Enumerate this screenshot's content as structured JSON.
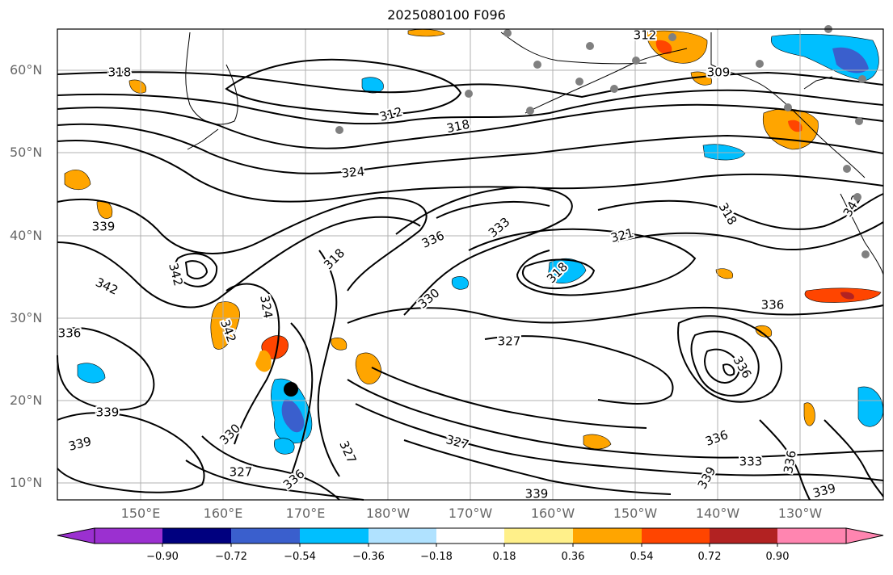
{
  "title": "2025080100 F096",
  "map": {
    "lat_labels": [
      "60°N",
      "50°N",
      "40°N",
      "30°N",
      "20°N",
      "10°N"
    ],
    "lon_labels": [
      "150°E",
      "160°E",
      "170°E",
      "180°W",
      "170°W",
      "160°W",
      "150°W",
      "140°W",
      "130°W"
    ],
    "contour_labels": [
      "318",
      "312",
      "318",
      "309",
      "312",
      "324",
      "321",
      "318",
      "333",
      "336",
      "336",
      "330",
      "327",
      "318",
      "339",
      "342",
      "342",
      "339",
      "330",
      "327",
      "336",
      "327",
      "327",
      "336",
      "333",
      "339",
      "339",
      "336",
      "339",
      "336",
      "336",
      "339",
      "342",
      "318",
      "342",
      "324"
    ]
  },
  "colorbar": {
    "labels": [
      "−0.90",
      "−0.72",
      "−0.54",
      "−0.36",
      "−0.18",
      "0.18",
      "0.36",
      "0.54",
      "0.72",
      "0.90"
    ],
    "colors": [
      "#9b30d0",
      "#00007f",
      "#3a5fcd",
      "#00bfff",
      "#b0e2ff",
      "#ffffff",
      "#fff08a",
      "#ffa500",
      "#ff4500",
      "#b22222",
      "#ff85b0",
      "#ff85b0"
    ]
  },
  "colors": {
    "contour": "#000000",
    "grid": "#b0b0b0",
    "coast": "#000000",
    "station": "#808080"
  }
}
